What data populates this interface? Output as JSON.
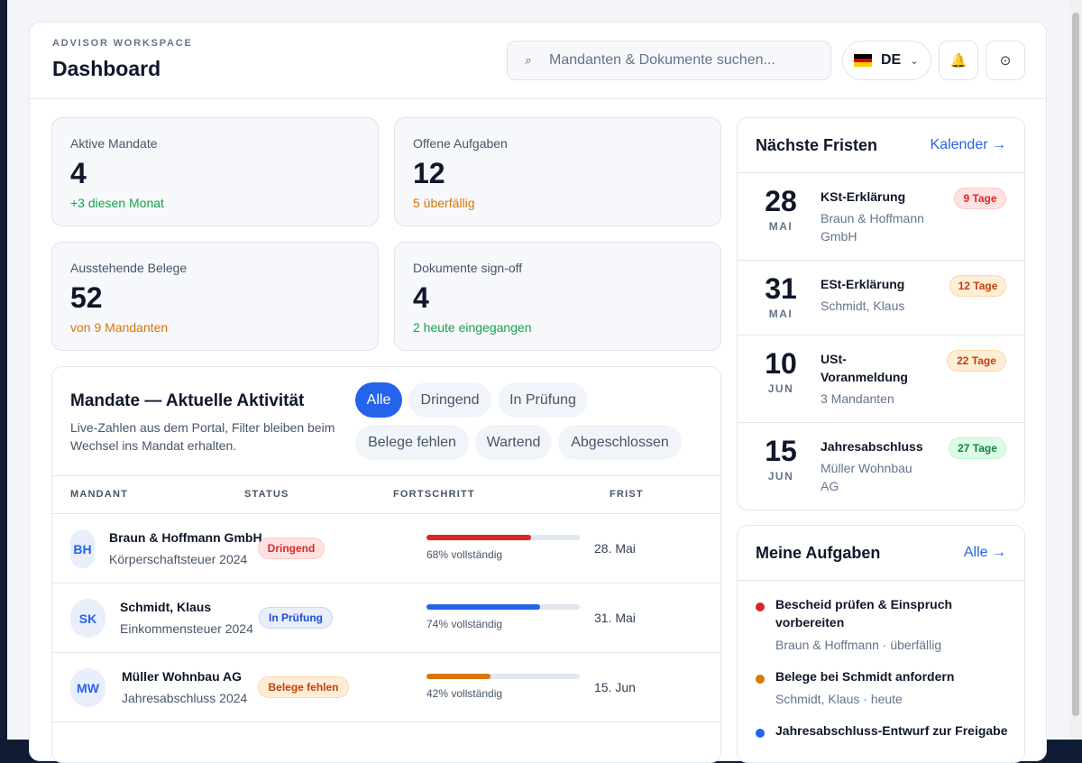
{
  "header": {
    "eyebrow": "ADVISOR WORKSPACE",
    "title": "Dashboard",
    "search_placeholder": "Mandanten & Dokumente suchen...",
    "language": "DE",
    "icons": {
      "search": "search-icon",
      "bell": "bell-icon",
      "settings": "settings-icon",
      "flag": "germany-flag-icon"
    }
  },
  "kpis": [
    {
      "label": "Aktive Mandate",
      "value": "4",
      "sub": "+3 diesen Monat",
      "sub_color": "#16a34a"
    },
    {
      "label": "Offene Aufgaben",
      "value": "12",
      "sub": "5 überfällig",
      "sub_color": "#d97706"
    },
    {
      "label": "Ausstehende Belege",
      "value": "52",
      "sub": "von 9 Mandanten",
      "sub_color": "#d97706"
    },
    {
      "label": "Dokumente sign-off",
      "value": "4",
      "sub": "2 heute eingegangen",
      "sub_color": "#16a34a"
    }
  ],
  "activity": {
    "title": "Mandate — Aktuelle Aktivität",
    "description": "Live-Zahlen aus dem Portal, Filter bleiben beim Wechsel ins Mandat erhalten.",
    "filters": [
      "Alle",
      "Dringend",
      "In Prüfung",
      "Belege fehlen",
      "Wartend",
      "Abgeschlossen"
    ],
    "active_filter": "Alle",
    "columns": [
      "MANDANT",
      "STATUS",
      "FORTSCHRITT",
      "FRIST"
    ],
    "rows": [
      {
        "initials": "BH",
        "name": "Braun & Hoffmann GmbH",
        "type": "Körperschaftsteuer 2024",
        "status": "Dringend",
        "progress": 68,
        "progress_label": "68% vollständig",
        "progress_color": "#dc2626",
        "deadline": "28. Mai"
      },
      {
        "initials": "SK",
        "name": "Schmidt, Klaus",
        "type": "Einkommensteuer 2024",
        "status": "In Prüfung",
        "progress": 74,
        "progress_label": "74% vollständig",
        "progress_color": "#2563eb",
        "deadline": "31. Mai"
      },
      {
        "initials": "MW",
        "name": "Müller Wohnbau AG",
        "type": "Jahresabschluss 2024",
        "status": "Belege fehlen",
        "progress": 42,
        "progress_label": "42% vollständig",
        "progress_color": "#d97706",
        "deadline": "15. Jun"
      }
    ]
  },
  "deadlines": {
    "title": "Nächste Fristen",
    "link": "Kalender →",
    "items": [
      {
        "day": "28",
        "month": "MAI",
        "name": "KSt-Erklärung",
        "client": "Braun & Hoffmann GmbH",
        "badge": "9 Tage",
        "badge_style": "red"
      },
      {
        "day": "31",
        "month": "MAI",
        "name": "ESt-Erklärung",
        "client": "Schmidt, Klaus",
        "badge": "12 Tage",
        "badge_style": "orange"
      },
      {
        "day": "10",
        "month": "JUN",
        "name": "USt-Voranmeldung",
        "client": "3 Mandanten",
        "badge": "22 Tage",
        "badge_style": "orange"
      },
      {
        "day": "15",
        "month": "JUN",
        "name": "Jahresabschluss",
        "client": "Müller Wohnbau AG",
        "badge": "27 Tage",
        "badge_style": "green"
      }
    ]
  },
  "tasks": {
    "title": "Meine Aufgaben",
    "link": "Alle →",
    "items": [
      {
        "title": "Bescheid prüfen & Einspruch vorbereiten",
        "meta": "Braun & Hoffmann · überfällig",
        "color": "#dc2626"
      },
      {
        "title": "Belege bei Schmidt anfordern",
        "meta": "Schmidt, Klaus · heute",
        "color": "#d97706"
      },
      {
        "title": "Jahresabschluss-Entwurf zur Freigabe",
        "meta": "",
        "color": "#2563eb"
      }
    ]
  }
}
